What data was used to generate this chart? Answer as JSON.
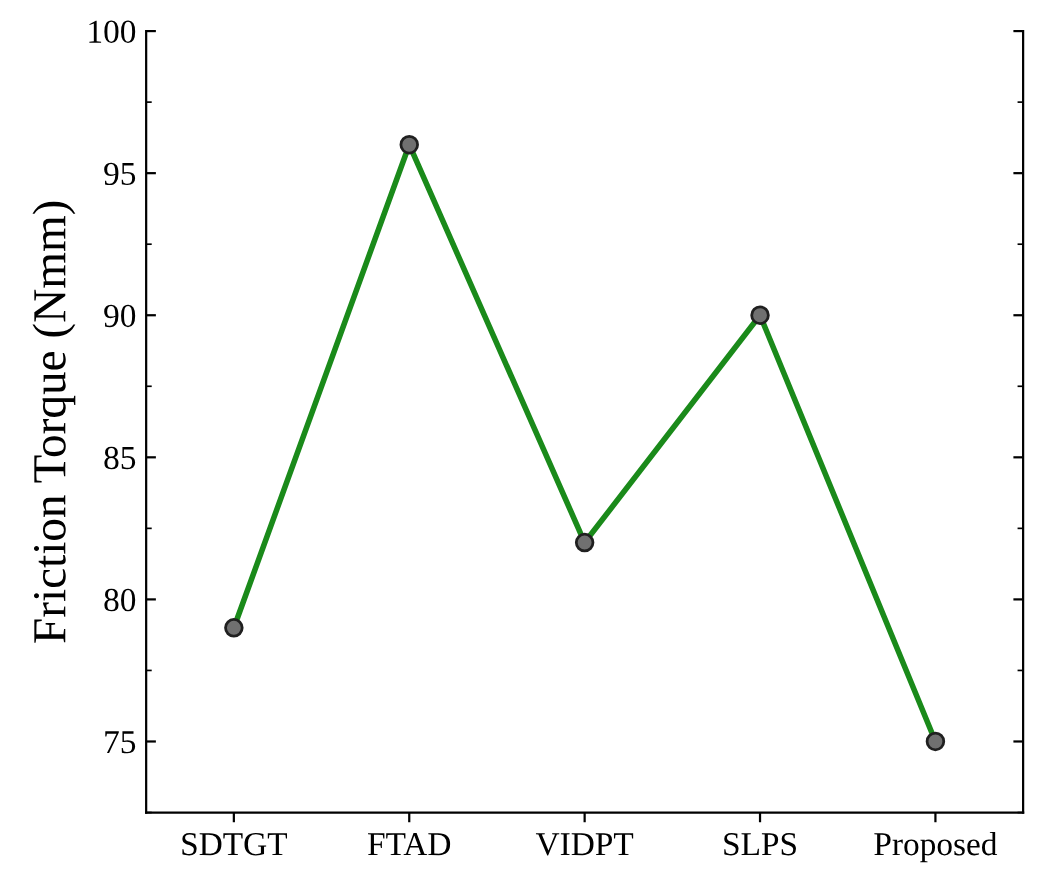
{
  "chart_data": {
    "type": "line",
    "ylabel": "Friction Torque (Nmm)",
    "categories": [
      "SDTGT",
      "FTAD",
      "VIDPT",
      "SLPS",
      "Proposed"
    ],
    "series": [
      {
        "color": "#1a8a1a",
        "values": [
          79,
          96,
          82,
          90,
          75
        ]
      }
    ],
    "ylim": [
      72.5,
      100
    ],
    "yticks": [
      75,
      80,
      85,
      90,
      95,
      100
    ],
    "marker": "circle",
    "line_style": "solid",
    "grid": false,
    "legend": false
  }
}
